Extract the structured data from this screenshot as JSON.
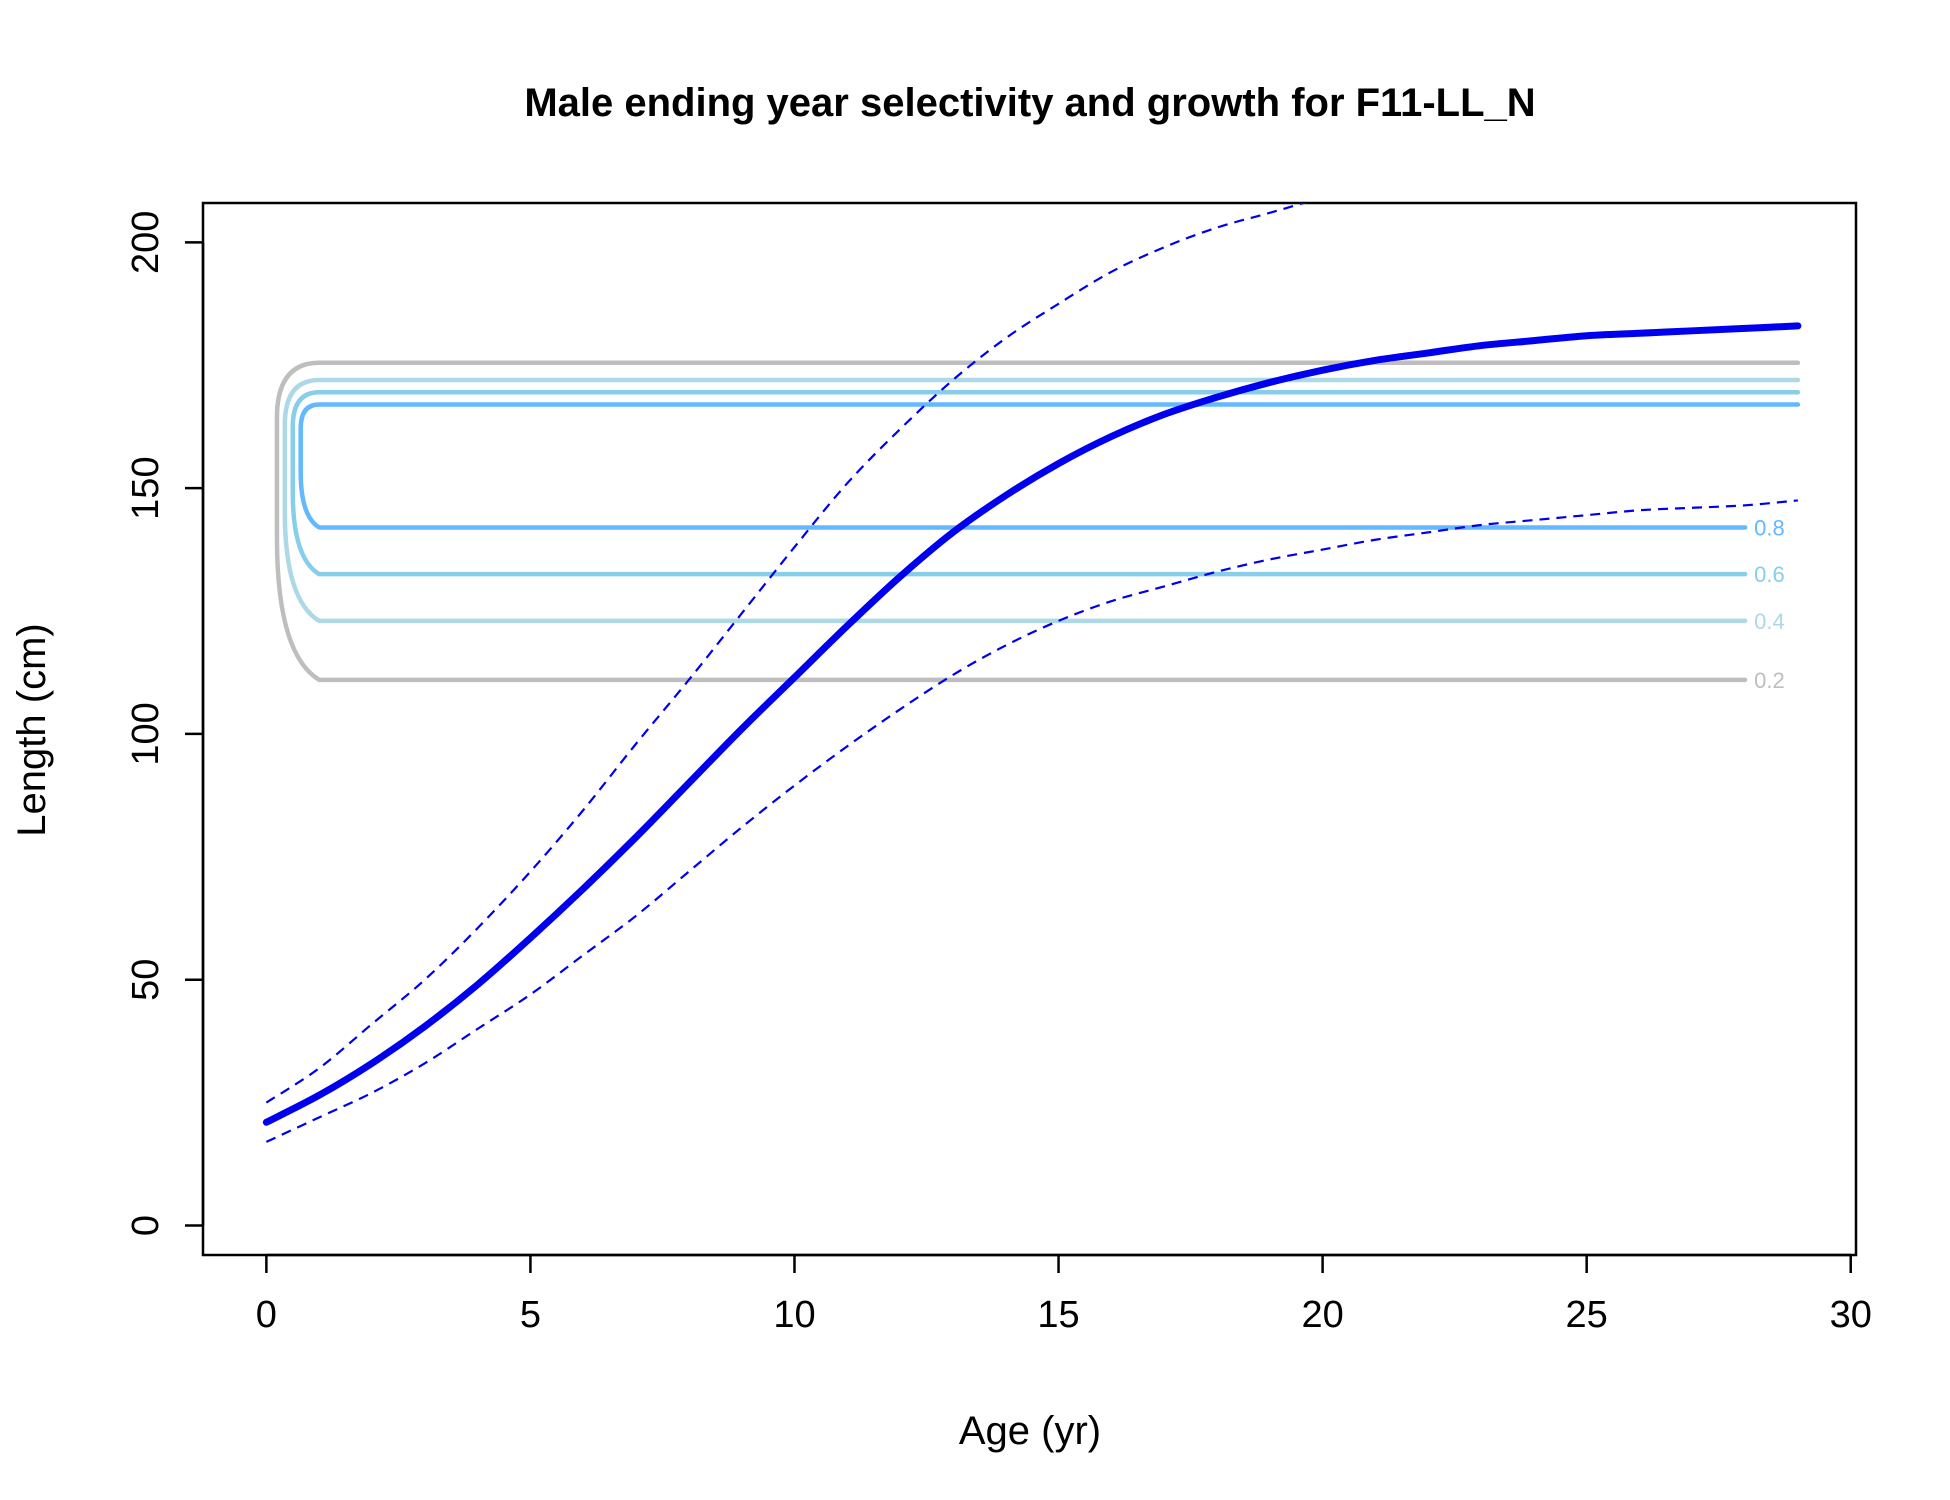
{
  "chart_data": {
    "type": "line",
    "title": "Male ending year selectivity and growth for F11-LL_N",
    "xlabel": "Age (yr)",
    "ylabel": "Length (cm)",
    "xlim": [
      -1.2,
      30.1
    ],
    "ylim": [
      -6,
      208
    ],
    "x_ticks": [
      0,
      5,
      10,
      15,
      20,
      25,
      30
    ],
    "y_ticks": [
      0,
      50,
      100,
      150,
      200
    ],
    "grid": false,
    "legend": "none",
    "growth": {
      "mean": {
        "x": [
          0,
          1,
          2,
          3,
          4,
          5,
          6,
          7,
          8,
          9,
          10,
          11,
          12,
          13,
          14,
          15,
          16,
          17,
          18,
          19,
          20,
          21,
          22,
          23,
          24,
          25,
          26,
          27,
          28,
          29
        ],
        "y": [
          21,
          26.5,
          33,
          40.5,
          49,
          58.5,
          68.5,
          79,
          90,
          101,
          111.5,
          122,
          132,
          141,
          148.5,
          155,
          160.5,
          165,
          168.5,
          171.5,
          174,
          176,
          177.5,
          179,
          180,
          181,
          181.5,
          182,
          182.5,
          183
        ],
        "color": "#0000ee",
        "style": "solid"
      },
      "upper": {
        "x": [
          0,
          1,
          2,
          3,
          4,
          5,
          6,
          7,
          8,
          9,
          10,
          11,
          12,
          13,
          14,
          15,
          16,
          17,
          18,
          19,
          20,
          21,
          21.8
        ],
        "y": [
          25,
          32,
          41,
          50,
          60.5,
          72,
          84.5,
          98,
          111,
          124.5,
          138,
          151,
          162,
          172,
          180.5,
          187.5,
          194,
          199,
          203,
          206,
          209,
          211,
          213
        ],
        "color": "#0000ee",
        "style": "dashed"
      },
      "lower": {
        "x": [
          0,
          1,
          2,
          3,
          4,
          5,
          6,
          7,
          8,
          9,
          10,
          11,
          12,
          13,
          14,
          15,
          16,
          17,
          18,
          19,
          20,
          21,
          22,
          23,
          24,
          25,
          26,
          27,
          28,
          29
        ],
        "y": [
          17,
          22,
          27,
          33,
          40,
          47,
          55,
          63,
          72,
          81,
          89.5,
          97.5,
          105,
          112,
          118,
          123,
          127,
          130,
          133,
          135.5,
          137.5,
          139.5,
          141,
          142.5,
          143.5,
          144.5,
          145.5,
          146,
          146.5,
          147.5
        ],
        "color": "#0000ee",
        "style": "dashed"
      }
    },
    "contours": [
      {
        "level_label": "0.2",
        "low": 111,
        "high": 175.5,
        "corner_x": 1,
        "start_x": 0.2,
        "color": "#bebebe"
      },
      {
        "level_label": "0.4",
        "low": 123,
        "high": 172,
        "corner_x": 1,
        "start_x": 0.35,
        "color": "#add8e6"
      },
      {
        "level_label": "0.6",
        "low": 132.5,
        "high": 169.5,
        "corner_x": 1,
        "start_x": 0.5,
        "color": "#87ceeb"
      },
      {
        "level_label": "0.8",
        "low": 142,
        "high": 167,
        "corner_x": 1,
        "start_x": 0.65,
        "color": "#63b8ff"
      }
    ],
    "contour_x_end": 29,
    "contour_label_x": 28
  }
}
